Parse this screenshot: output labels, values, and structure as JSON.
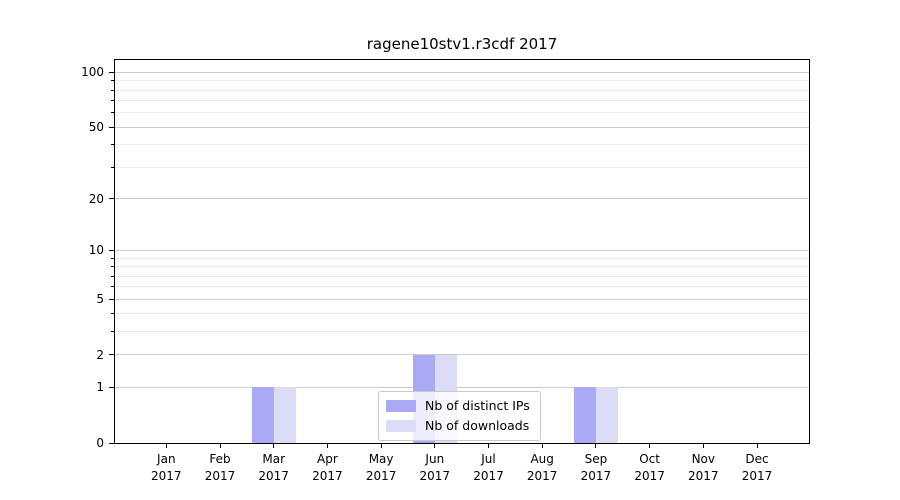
{
  "chart_data": {
    "type": "bar",
    "title": "ragene10stv1.r3cdf 2017",
    "x_year": "2017",
    "categories": [
      "Jan",
      "Feb",
      "Mar",
      "Apr",
      "May",
      "Jun",
      "Jul",
      "Aug",
      "Sep",
      "Oct",
      "Nov",
      "Dec"
    ],
    "series": [
      {
        "name": "Nb of distinct IPs",
        "color": "#a9a9f5",
        "values": [
          0,
          0,
          1,
          0,
          0,
          2,
          0,
          0,
          1,
          0,
          0,
          0
        ]
      },
      {
        "name": "Nb of downloads",
        "color": "#dcdcf9",
        "values": [
          0,
          0,
          1,
          0,
          0,
          2,
          0,
          0,
          1,
          0,
          0,
          0
        ]
      }
    ],
    "y_axis": {
      "scale": "log10(value+1)",
      "major_ticks": [
        0,
        1,
        2,
        5,
        10,
        20,
        50,
        100
      ],
      "minor_gridlines": [
        3,
        4,
        6,
        7,
        8,
        9,
        30,
        40,
        60,
        70,
        80,
        90
      ],
      "ylim": [
        0,
        117
      ],
      "grid": true
    },
    "legend": {
      "position": "lower center",
      "entries": [
        "Nb of distinct IPs",
        "Nb of downloads"
      ]
    },
    "colors": {
      "major_grid": "#cbcbcb",
      "minor_grid": "#ebebeb",
      "axis": "#000000",
      "background": "#ffffff"
    }
  }
}
